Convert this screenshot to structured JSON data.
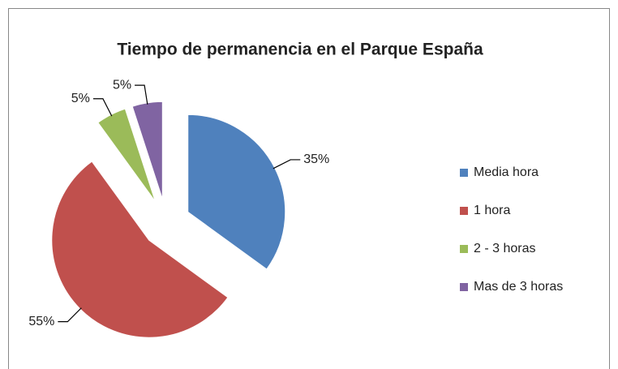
{
  "chart_data": {
    "type": "pie",
    "title": "Tiempo de permanencia en el Parque España",
    "categories": [
      "Media hora",
      "1 hora",
      "2 - 3 horas",
      "Mas de 3 horas"
    ],
    "values": [
      35,
      55,
      5,
      5
    ],
    "value_labels": [
      "35%",
      "55%",
      "5%",
      "5%"
    ],
    "colors": [
      "#4f81bd",
      "#c0504d",
      "#9bbb59",
      "#8064a2"
    ],
    "legend": "right"
  }
}
